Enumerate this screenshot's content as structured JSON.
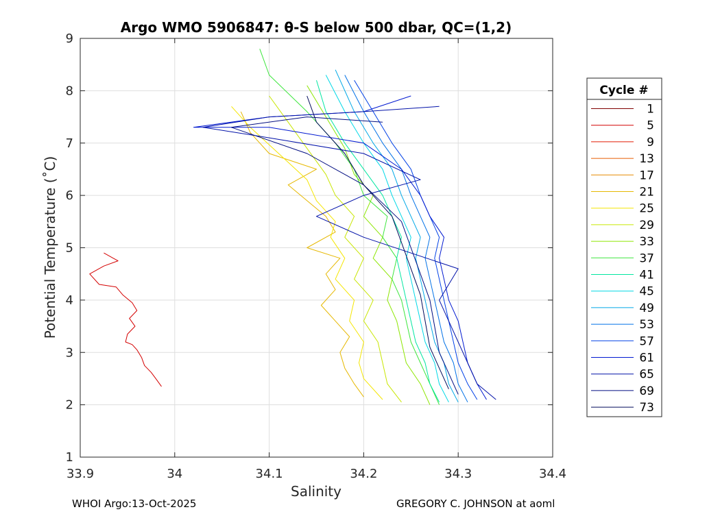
{
  "title": "Argo WMO 5906847: θ-S below 500 dbar,  QC=(1,2)",
  "footer_left": "WHOI Argo:13-Oct-2025",
  "footer_right": "GREGORY C. JOHNSON at aoml",
  "chart_data": {
    "type": "line",
    "title": "Argo WMO 5906847: θ-S below 500 dbar,  QC=(1,2)",
    "xlabel": "Salinity",
    "ylabel": "Potential Temperature (˚C)",
    "xlim": [
      33.9,
      34.4
    ],
    "ylim": [
      1,
      9
    ],
    "xticks": [
      33.9,
      34.0,
      34.1,
      34.2,
      34.3,
      34.4
    ],
    "xtick_labels": [
      "33.9",
      "34",
      "34.1",
      "34.2",
      "34.3",
      "34.4"
    ],
    "yticks": [
      1,
      2,
      3,
      4,
      5,
      6,
      7,
      8,
      9
    ],
    "grid": true,
    "legend_title": "Cycle #",
    "legend_position": "outside-right",
    "series": [
      {
        "name": "1",
        "color": "#800000",
        "x": [],
        "y": []
      },
      {
        "name": "5",
        "color": "#d40000",
        "x": [
          33.986,
          33.98,
          33.975,
          33.968,
          33.965,
          33.96,
          33.955,
          33.948,
          33.95,
          33.958,
          33.952,
          33.96,
          33.955,
          33.945,
          33.938,
          33.92,
          33.91,
          33.925,
          33.94,
          33.935,
          33.925
        ],
        "y": [
          2.35,
          2.5,
          2.62,
          2.75,
          2.9,
          3.05,
          3.15,
          3.2,
          3.35,
          3.5,
          3.65,
          3.8,
          3.95,
          4.1,
          4.25,
          4.3,
          4.5,
          4.65,
          4.75,
          4.8,
          4.9
        ]
      },
      {
        "name": "9",
        "color": "#e31a00",
        "x": [],
        "y": []
      },
      {
        "name": "13",
        "color": "#e65c00",
        "x": [],
        "y": []
      },
      {
        "name": "17",
        "color": "#e68a00",
        "x": [],
        "y": []
      },
      {
        "name": "21",
        "color": "#e6b800",
        "x": [
          34.2,
          34.19,
          34.18,
          34.175,
          34.185,
          34.17,
          34.155,
          34.17,
          34.16,
          34.175,
          34.14,
          34.17,
          34.16,
          34.14,
          34.12,
          34.15,
          34.1,
          34.08,
          34.07
        ],
        "y": [
          2.15,
          2.4,
          2.7,
          3.0,
          3.3,
          3.6,
          3.9,
          4.2,
          4.5,
          4.8,
          5.0,
          5.3,
          5.6,
          5.9,
          6.2,
          6.5,
          6.8,
          7.2,
          7.6
        ]
      },
      {
        "name": "25",
        "color": "#f5e600",
        "x": [
          34.22,
          34.2,
          34.195,
          34.2,
          34.185,
          34.19,
          34.17,
          34.18,
          34.165,
          34.17,
          34.15,
          34.14,
          34.11,
          34.08,
          34.06
        ],
        "y": [
          2.1,
          2.5,
          2.8,
          3.2,
          3.6,
          4.0,
          4.4,
          4.8,
          5.2,
          5.5,
          5.9,
          6.3,
          6.8,
          7.3,
          7.7
        ]
      },
      {
        "name": "29",
        "color": "#c8e600",
        "x": [
          34.24,
          34.225,
          34.22,
          34.215,
          34.2,
          34.21,
          34.19,
          34.2,
          34.18,
          34.19,
          34.17,
          34.16,
          34.14,
          34.12,
          34.1
        ],
        "y": [
          2.05,
          2.4,
          2.8,
          3.2,
          3.6,
          4.0,
          4.4,
          4.8,
          5.2,
          5.6,
          6.0,
          6.4,
          6.9,
          7.4,
          7.9
        ]
      },
      {
        "name": "33",
        "color": "#8ce600",
        "x": [
          34.27,
          34.26,
          34.245,
          34.24,
          34.235,
          34.225,
          34.23,
          34.21,
          34.22,
          34.2,
          34.21,
          34.19,
          34.18,
          34.16,
          34.14
        ],
        "y": [
          2.0,
          2.4,
          2.8,
          3.2,
          3.6,
          4.0,
          4.4,
          4.8,
          5.2,
          5.6,
          6.0,
          6.4,
          6.9,
          7.5,
          8.1
        ]
      },
      {
        "name": "37",
        "color": "#3ce63c",
        "x": [
          34.28,
          34.27,
          34.26,
          34.25,
          34.245,
          34.24,
          34.23,
          34.235,
          34.22,
          34.225,
          34.2,
          34.19,
          34.17,
          34.14,
          34.1,
          34.09
        ],
        "y": [
          2.0,
          2.4,
          2.8,
          3.2,
          3.6,
          4.0,
          4.4,
          4.8,
          5.2,
          5.6,
          6.0,
          6.5,
          7.0,
          7.6,
          8.3,
          8.8
        ]
      },
      {
        "name": "41",
        "color": "#00e6a0",
        "x": [
          34.28,
          34.27,
          34.265,
          34.255,
          34.25,
          34.245,
          34.24,
          34.235,
          34.24,
          34.23,
          34.22,
          34.2,
          34.18,
          34.16,
          34.15
        ],
        "y": [
          2.05,
          2.4,
          2.8,
          3.2,
          3.6,
          4.0,
          4.4,
          4.8,
          5.2,
          5.6,
          6.0,
          6.5,
          7.0,
          7.6,
          8.2
        ]
      },
      {
        "name": "45",
        "color": "#00d8e6",
        "x": [
          34.29,
          34.28,
          34.275,
          34.265,
          34.26,
          34.255,
          34.25,
          34.245,
          34.25,
          34.24,
          34.23,
          34.22,
          34.2,
          34.18,
          34.16
        ],
        "y": [
          2.05,
          2.4,
          2.8,
          3.2,
          3.6,
          4.0,
          4.4,
          4.8,
          5.2,
          5.6,
          6.0,
          6.5,
          7.0,
          7.6,
          8.3
        ]
      },
      {
        "name": "49",
        "color": "#00a8e6",
        "x": [
          34.3,
          34.29,
          34.285,
          34.275,
          34.27,
          34.265,
          34.26,
          34.255,
          34.26,
          34.25,
          34.24,
          34.23,
          34.21,
          34.19,
          34.17
        ],
        "y": [
          2.05,
          2.4,
          2.8,
          3.2,
          3.6,
          4.0,
          4.4,
          4.8,
          5.2,
          5.6,
          6.0,
          6.5,
          7.0,
          7.6,
          8.4
        ]
      },
      {
        "name": "53",
        "color": "#0070e6",
        "x": [
          34.31,
          34.3,
          34.295,
          34.285,
          34.28,
          34.275,
          34.27,
          34.265,
          34.27,
          34.26,
          34.25,
          34.24,
          34.22,
          34.2,
          34.18
        ],
        "y": [
          2.05,
          2.4,
          2.8,
          3.2,
          3.6,
          4.0,
          4.4,
          4.8,
          5.2,
          5.6,
          6.0,
          6.5,
          7.0,
          7.6,
          8.3
        ]
      },
      {
        "name": "57",
        "color": "#0040e6",
        "x": [
          34.32,
          34.31,
          34.3,
          34.295,
          34.29,
          34.285,
          34.28,
          34.275,
          34.28,
          34.27,
          34.26,
          34.25,
          34.23,
          34.21,
          34.19
        ],
        "y": [
          2.1,
          2.4,
          2.8,
          3.2,
          3.6,
          4.0,
          4.4,
          4.8,
          5.2,
          5.6,
          6.0,
          6.5,
          7.0,
          7.6,
          8.2
        ]
      },
      {
        "name": "61",
        "color": "#0018d0",
        "x": [
          34.33,
          34.32,
          34.31,
          34.305,
          34.3,
          34.29,
          34.285,
          34.28,
          34.285,
          34.27,
          34.26,
          34.24,
          34.2,
          34.1,
          34.02,
          34.1,
          34.2,
          34.25
        ],
        "y": [
          2.1,
          2.4,
          2.8,
          3.2,
          3.6,
          4.0,
          4.4,
          4.8,
          5.2,
          5.6,
          6.0,
          6.5,
          7.0,
          7.3,
          7.3,
          7.5,
          7.6,
          7.9
        ]
      },
      {
        "name": "65",
        "color": "#0010a8",
        "x": [
          34.34,
          34.32,
          34.31,
          34.3,
          34.29,
          34.28,
          34.3,
          34.2,
          34.15,
          34.2,
          34.26,
          34.2,
          34.1,
          34.03,
          34.1,
          34.2,
          34.28
        ],
        "y": [
          2.1,
          2.4,
          2.8,
          3.2,
          3.6,
          4.0,
          4.6,
          5.2,
          5.6,
          6.0,
          6.3,
          6.8,
          7.1,
          7.3,
          7.5,
          7.6,
          7.7
        ]
      },
      {
        "name": "69",
        "color": "#000c80",
        "x": [
          34.3,
          34.29,
          34.28,
          34.275,
          34.27,
          34.26,
          34.25,
          34.24,
          34.2,
          34.14,
          34.06,
          34.14,
          34.22
        ],
        "y": [
          2.2,
          2.6,
          3.0,
          3.5,
          4.0,
          4.5,
          5.0,
          5.5,
          6.2,
          6.8,
          7.3,
          7.5,
          7.4
        ]
      },
      {
        "name": "73",
        "color": "#000a5a",
        "x": [
          34.29,
          34.28,
          34.27,
          34.265,
          34.26,
          34.25,
          34.24,
          34.23,
          34.2,
          34.18,
          34.15,
          34.14
        ],
        "y": [
          2.3,
          2.7,
          3.1,
          3.6,
          4.1,
          4.6,
          5.1,
          5.6,
          6.2,
          6.8,
          7.4,
          7.9
        ]
      }
    ]
  }
}
